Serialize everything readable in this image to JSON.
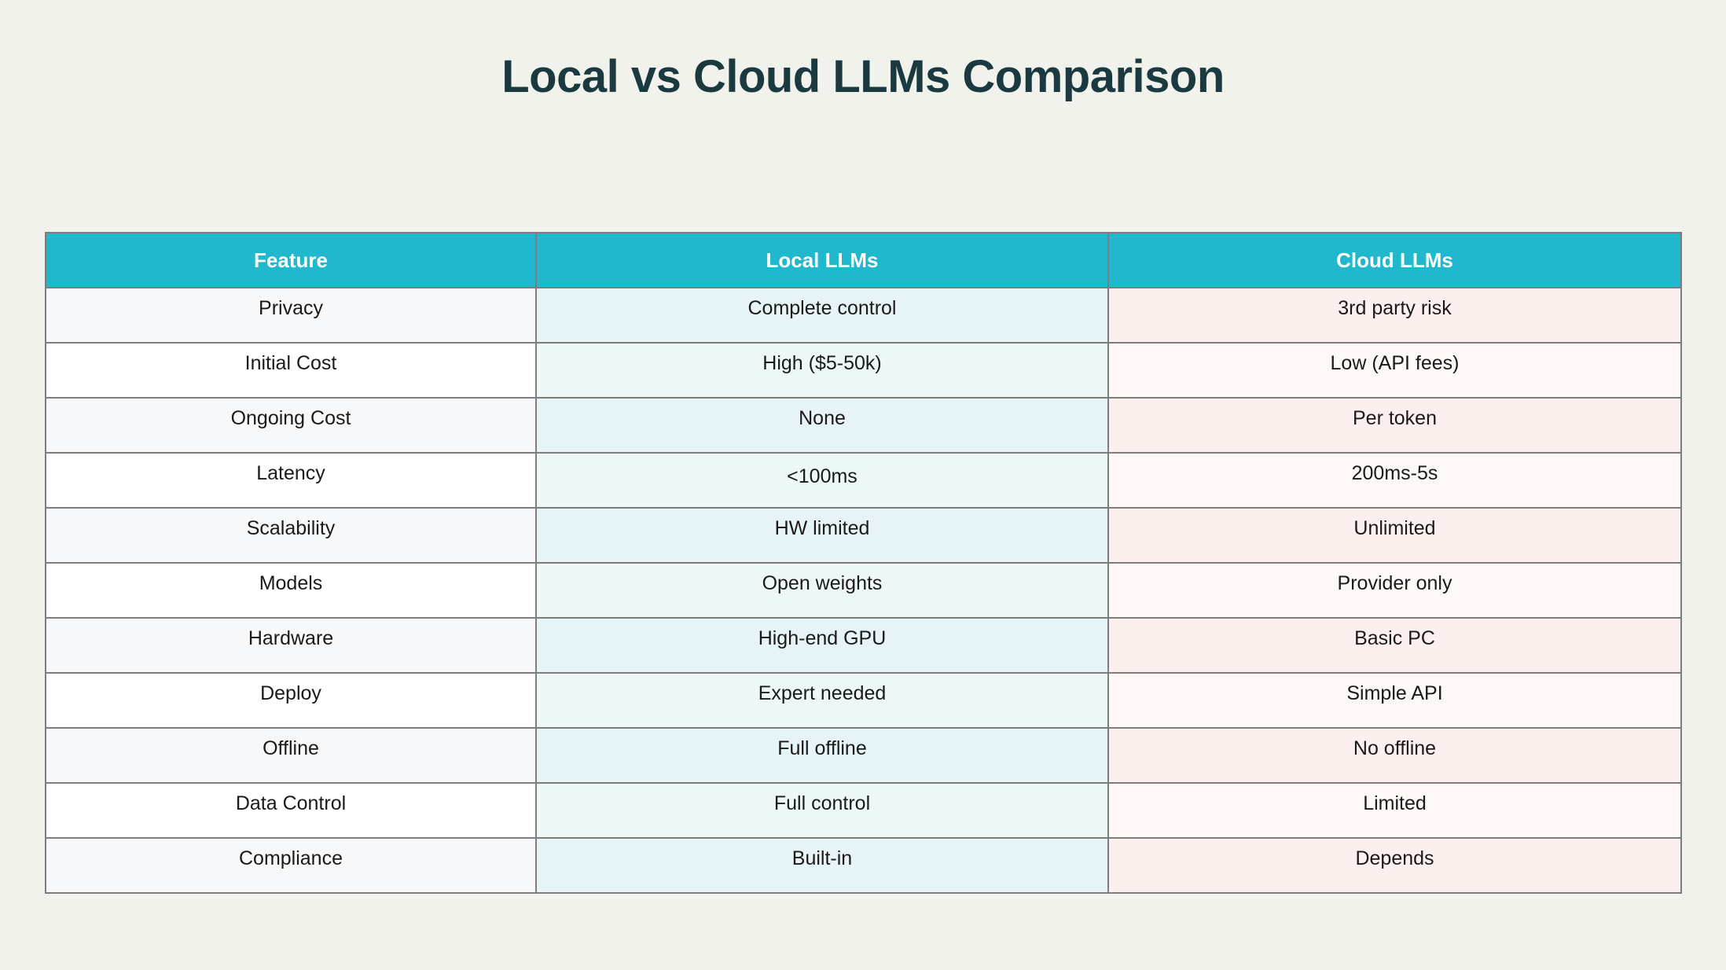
{
  "chart_data": {
    "type": "table",
    "title": "Local vs Cloud LLMs Comparison",
    "columns": [
      "Feature",
      "Local LLMs",
      "Cloud LLMs"
    ],
    "rows": [
      [
        "Privacy",
        "Complete control",
        "3rd party risk"
      ],
      [
        "Initial Cost",
        "High ($5-50k)",
        "Low (API fees)"
      ],
      [
        "Ongoing Cost",
        "None",
        "Per token"
      ],
      [
        "Latency",
        "<100ms",
        "200ms-5s"
      ],
      [
        "Scalability",
        "HW limited",
        "Unlimited"
      ],
      [
        "Models",
        "Open weights",
        "Provider only"
      ],
      [
        "Hardware",
        "High-end GPU",
        "Basic PC"
      ],
      [
        "Deploy",
        "Expert needed",
        "Simple API"
      ],
      [
        "Offline",
        "Full offline",
        "No offline"
      ],
      [
        "Data Control",
        "Full control",
        "Limited"
      ],
      [
        "Compliance",
        "Built-in",
        "Depends"
      ]
    ]
  },
  "colors": {
    "background": "#f2f2ed",
    "title": "#1a3a40",
    "header_bg": "#21b8cd",
    "header_text": "#ffffff",
    "border": "#7d7d7d",
    "feature_odd": "#f6f8f9",
    "feature_even": "#ffffff",
    "local_odd": "#e6f3f7",
    "local_even": "#eef7f8",
    "cloud_odd": "#fcf0ef",
    "cloud_even": "#fdf7f6"
  }
}
